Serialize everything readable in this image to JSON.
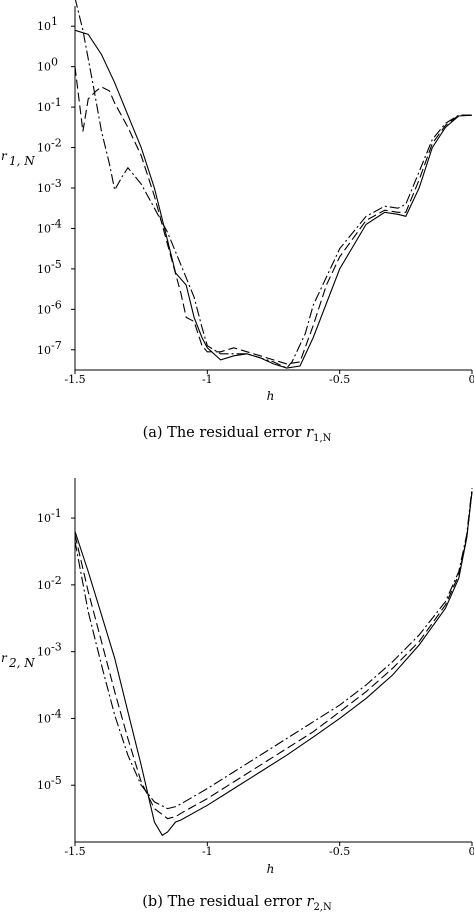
{
  "chart_data": [
    {
      "type": "line",
      "xlabel": "h",
      "ylabel": "r",
      "ylabel_sub": "1, N",
      "caption_prefix": "(a)  The residual error ",
      "caption_symbol": "r",
      "caption_sub": "1,N",
      "yscale": "log",
      "xlim": [
        -1.5,
        0
      ],
      "ylim_exp": [
        -7.5,
        1.5
      ],
      "xticks": [
        -1.5,
        -1,
        -0.5,
        0
      ],
      "xtick_labels": [
        "-1.5",
        "-1",
        "-0.5",
        "0"
      ],
      "yticks_exp": [
        -7,
        -6,
        -5,
        -4,
        -3,
        -2,
        -1,
        0,
        1
      ],
      "ytick_labels": [
        "10",
        "10",
        "10",
        "10",
        "10",
        "10",
        "10",
        "10",
        "10"
      ],
      "ytick_sups": [
        "-7",
        "-6",
        "-5",
        "-4",
        "-3",
        "-2",
        "-1",
        "0",
        "1"
      ],
      "series": [
        {
          "style": "solid",
          "x": [
            -1.5,
            -1.45,
            -1.4,
            -1.35,
            -1.3,
            -1.25,
            -1.2,
            -1.15,
            -1.12,
            -1.08,
            -1.05,
            -1.02,
            -1.0,
            -0.95,
            -0.9,
            -0.85,
            -0.8,
            -0.75,
            -0.7,
            -0.65,
            -0.6,
            -0.5,
            -0.4,
            -0.33,
            -0.28,
            -0.25,
            -0.2,
            -0.15,
            -0.1,
            -0.05,
            0.0
          ],
          "log10y": [
            0.9,
            0.8,
            0.3,
            -0.4,
            -1.2,
            -2.0,
            -3.0,
            -4.3,
            -5.1,
            -5.4,
            -6.2,
            -6.7,
            -6.95,
            -7.25,
            -7.15,
            -7.1,
            -7.2,
            -7.35,
            -7.45,
            -7.4,
            -6.7,
            -5.0,
            -3.9,
            -3.6,
            -3.65,
            -3.7,
            -3.0,
            -2.0,
            -1.5,
            -1.22,
            -1.2
          ]
        },
        {
          "style": "dash",
          "x": [
            -1.5,
            -1.47,
            -1.45,
            -1.42,
            -1.4,
            -1.37,
            -1.35,
            -1.3,
            -1.25,
            -1.2,
            -1.15,
            -1.1,
            -1.08,
            -1.05,
            -1.02,
            -1.0,
            -0.95,
            -0.9,
            -0.85,
            -0.8,
            -0.75,
            -0.7,
            -0.65,
            -0.6,
            -0.55,
            -0.5,
            -0.4,
            -0.33,
            -0.28,
            -0.25,
            -0.2,
            -0.15,
            -0.1,
            -0.05,
            0.0
          ],
          "log10y": [
            0.0,
            -1.6,
            -0.8,
            -0.6,
            -0.5,
            -0.6,
            -0.9,
            -1.5,
            -2.2,
            -3.2,
            -4.4,
            -5.6,
            -6.2,
            -6.3,
            -6.9,
            -7.05,
            -7.05,
            -6.95,
            -7.05,
            -7.15,
            -7.25,
            -7.35,
            -7.3,
            -6.4,
            -5.4,
            -4.7,
            -3.8,
            -3.55,
            -3.6,
            -3.6,
            -2.8,
            -1.9,
            -1.45,
            -1.2,
            -1.2
          ]
        },
        {
          "style": "dashdot",
          "x": [
            -1.5,
            -1.47,
            -1.43,
            -1.4,
            -1.37,
            -1.35,
            -1.32,
            -1.3,
            -1.25,
            -1.2,
            -1.15,
            -1.1,
            -1.05,
            -1.02,
            -1.0,
            -0.95,
            -0.9,
            -0.85,
            -0.8,
            -0.75,
            -0.7,
            -0.68,
            -0.63,
            -0.6,
            -0.5,
            -0.4,
            -0.33,
            -0.28,
            -0.25,
            -0.2,
            -0.15,
            -0.1,
            -0.05,
            0.0
          ],
          "log10y": [
            1.7,
            0.9,
            -0.5,
            -1.6,
            -2.4,
            -3.05,
            -2.7,
            -2.5,
            -2.9,
            -3.5,
            -4.1,
            -4.9,
            -5.7,
            -6.45,
            -6.9,
            -7.1,
            -7.1,
            -7.1,
            -7.2,
            -7.3,
            -7.45,
            -7.3,
            -6.6,
            -5.9,
            -4.5,
            -3.7,
            -3.45,
            -3.5,
            -3.4,
            -2.6,
            -1.8,
            -1.4,
            -1.2,
            -1.2
          ]
        }
      ]
    },
    {
      "type": "line",
      "xlabel": "h",
      "ylabel": "r",
      "ylabel_sub": "2, N",
      "caption_prefix": "(b)  The residual error ",
      "caption_symbol": "r",
      "caption_sub": "2,N",
      "yscale": "log",
      "xlim": [
        -1.5,
        0
      ],
      "ylim_exp": [
        -5.85,
        -0.4
      ],
      "xticks": [
        -1.5,
        -1,
        -0.5,
        0
      ],
      "xtick_labels": [
        "-1.5",
        "-1",
        "-0.5",
        "0"
      ],
      "yticks_exp": [
        -5,
        -4,
        -3,
        -2,
        -1
      ],
      "ytick_labels": [
        "10",
        "10",
        "10",
        "10",
        "10"
      ],
      "ytick_sups": [
        "-5",
        "-4",
        "-3",
        "-2",
        "-1"
      ],
      "series": [
        {
          "style": "solid",
          "x": [
            -1.5,
            -1.45,
            -1.4,
            -1.35,
            -1.3,
            -1.25,
            -1.2,
            -1.17,
            -1.15,
            -1.12,
            -1.1,
            -1.0,
            -0.9,
            -0.8,
            -0.7,
            -0.6,
            -0.5,
            -0.4,
            -0.3,
            -0.2,
            -0.1,
            -0.05,
            -0.02,
            0.0
          ],
          "log10y": [
            -1.2,
            -1.8,
            -2.45,
            -3.1,
            -3.9,
            -4.7,
            -5.55,
            -5.75,
            -5.7,
            -5.55,
            -5.52,
            -5.3,
            -5.05,
            -4.8,
            -4.55,
            -4.28,
            -4.0,
            -3.7,
            -3.35,
            -2.9,
            -2.35,
            -1.9,
            -1.3,
            -0.6
          ]
        },
        {
          "style": "dash",
          "x": [
            -1.5,
            -1.45,
            -1.4,
            -1.35,
            -1.3,
            -1.25,
            -1.2,
            -1.15,
            -1.12,
            -1.1,
            -1.0,
            -0.9,
            -0.8,
            -0.7,
            -0.6,
            -0.5,
            -0.4,
            -0.3,
            -0.2,
            -0.1,
            -0.05,
            -0.02,
            0.0
          ],
          "log10y": [
            -1.25,
            -2.1,
            -2.85,
            -3.6,
            -4.3,
            -4.95,
            -5.35,
            -5.5,
            -5.47,
            -5.42,
            -5.2,
            -4.95,
            -4.7,
            -4.45,
            -4.2,
            -3.9,
            -3.6,
            -3.25,
            -2.85,
            -2.3,
            -1.85,
            -1.3,
            -0.6
          ]
        },
        {
          "style": "dashdot",
          "x": [
            -1.5,
            -1.45,
            -1.4,
            -1.35,
            -1.3,
            -1.25,
            -1.2,
            -1.15,
            -1.12,
            -1.1,
            -1.0,
            -0.9,
            -0.8,
            -0.7,
            -0.6,
            -0.5,
            -0.4,
            -0.3,
            -0.2,
            -0.1,
            -0.05,
            -0.02,
            0.0
          ],
          "log10y": [
            -1.35,
            -2.4,
            -3.2,
            -3.95,
            -4.55,
            -5.0,
            -5.25,
            -5.35,
            -5.32,
            -5.28,
            -5.05,
            -4.8,
            -4.55,
            -4.3,
            -4.05,
            -3.8,
            -3.5,
            -3.15,
            -2.75,
            -2.25,
            -1.8,
            -1.25,
            -0.55
          ]
        }
      ]
    }
  ]
}
